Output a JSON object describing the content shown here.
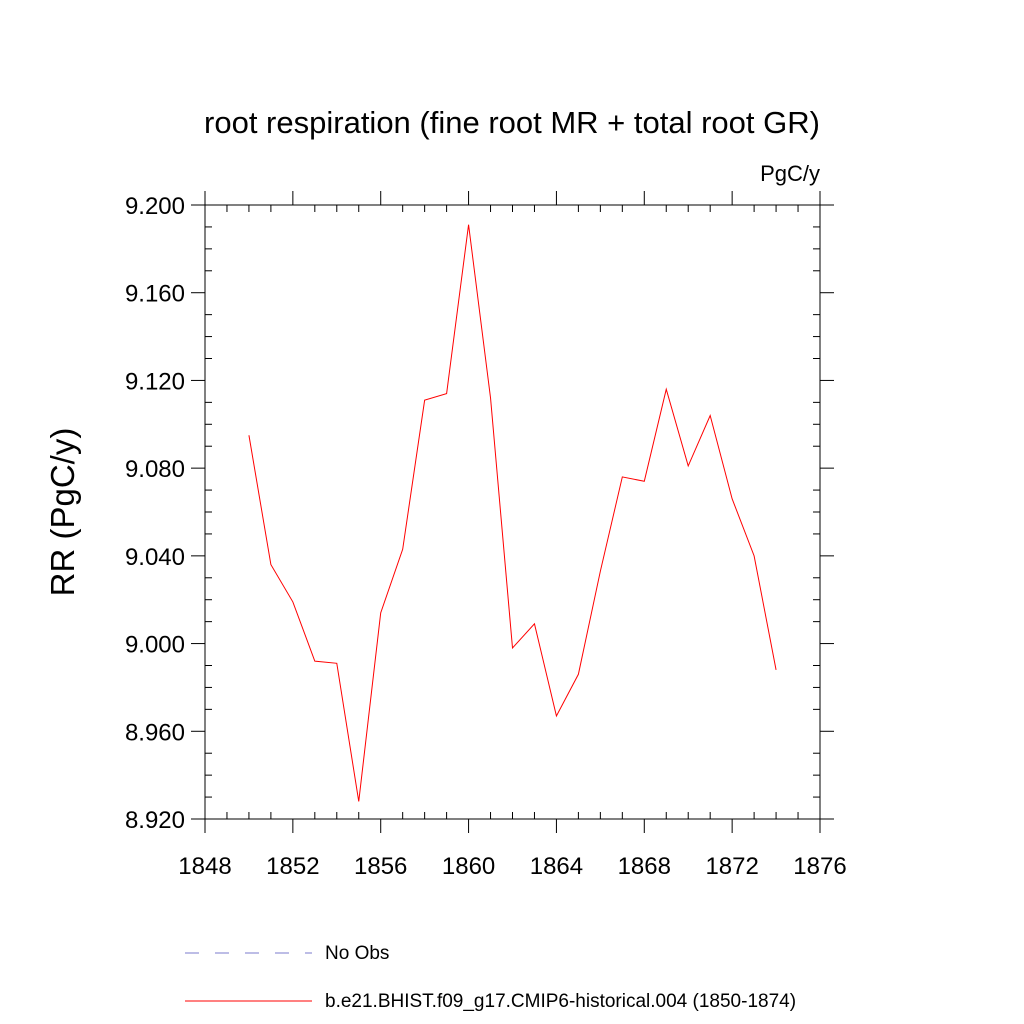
{
  "chart_data": {
    "type": "line",
    "title": "root respiration (fine root MR + total root GR)",
    "units_label": "PgC/y",
    "ylabel": "RR  (PgC/y)",
    "xlabel": "",
    "xlim": [
      1848,
      1876
    ],
    "ylim": [
      8.92,
      9.2
    ],
    "x_ticks": [
      1848,
      1852,
      1856,
      1860,
      1864,
      1868,
      1872,
      1876
    ],
    "x_tick_labels": [
      "1848",
      "1852",
      "1856",
      "1860",
      "1864",
      "1868",
      "1872",
      "1876"
    ],
    "y_ticks": [
      8.92,
      8.96,
      9.0,
      9.04,
      9.08,
      9.12,
      9.16,
      9.2
    ],
    "y_tick_labels": [
      "8.920",
      "8.960",
      "9.000",
      "9.040",
      "9.080",
      "9.120",
      "9.160",
      "9.200"
    ],
    "grid": false,
    "legend_position": "bottom",
    "series": [
      {
        "name": "b.e21.BHIST.f09_g17.CMIP6-historical.004 (1850-1874)",
        "color": "#ff0000",
        "dash": "solid",
        "x": [
          1850,
          1851,
          1852,
          1853,
          1854,
          1855,
          1856,
          1857,
          1858,
          1859,
          1860,
          1861,
          1862,
          1863,
          1864,
          1865,
          1866,
          1867,
          1868,
          1869,
          1870,
          1871,
          1872,
          1873,
          1874
        ],
        "values": [
          9.095,
          9.036,
          9.019,
          8.992,
          8.991,
          8.928,
          9.014,
          9.043,
          9.111,
          9.114,
          9.191,
          9.112,
          8.998,
          9.009,
          8.967,
          8.986,
          9.033,
          9.076,
          9.074,
          9.116,
          9.081,
          9.104,
          9.066,
          9.04,
          8.988
        ]
      },
      {
        "name": "No Obs",
        "color": "#7b7bcc",
        "dash": "dashed",
        "x": [],
        "values": []
      }
    ]
  },
  "legend": {
    "items": [
      {
        "label": "No Obs",
        "color": "#7b7bcc",
        "dash": "dashed"
      },
      {
        "label": "b.e21.BHIST.f09_g17.CMIP6-historical.004 (1850-1874)",
        "color": "#ff0000",
        "dash": "solid"
      }
    ]
  }
}
